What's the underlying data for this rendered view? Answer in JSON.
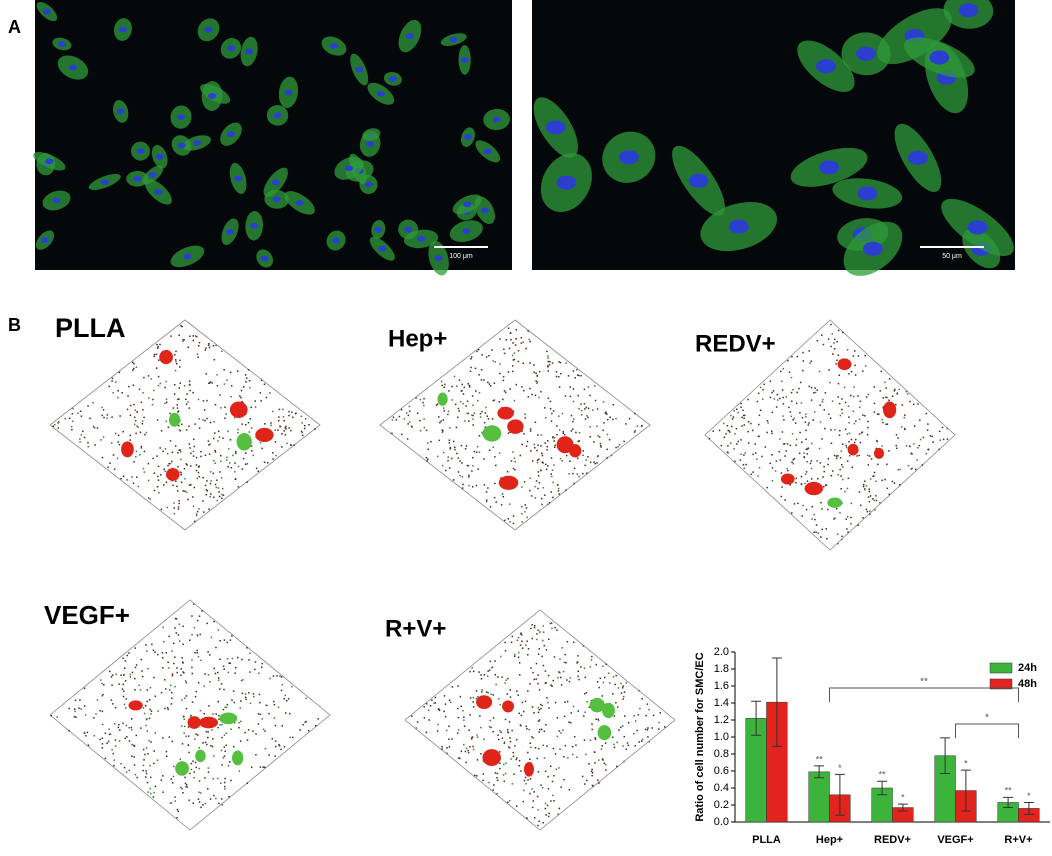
{
  "panel_a": {
    "label": "A",
    "scale_bars": [
      "100 μm",
      "50 μm"
    ]
  },
  "panel_b": {
    "label": "B",
    "images": [
      "PLLA",
      "Hep+",
      "REDV+",
      "VEGF+",
      "R+V+"
    ]
  },
  "chart_data": {
    "type": "bar",
    "y_label": "Ratio of cell number for SMC/EC",
    "categories": [
      "PLLA",
      "Hep+",
      "REDV+",
      "VEGF+",
      "R+V+"
    ],
    "series": [
      {
        "name": "24h",
        "color": "#3cb43c",
        "values": [
          1.22,
          0.59,
          0.4,
          0.78,
          0.23
        ],
        "errors": [
          0.2,
          0.07,
          0.08,
          0.21,
          0.06
        ],
        "significance": [
          null,
          "**",
          "**",
          null,
          "**"
        ]
      },
      {
        "name": "48h",
        "color": "#e3231d",
        "values": [
          1.41,
          0.32,
          0.17,
          0.37,
          0.16
        ],
        "errors": [
          0.52,
          0.24,
          0.04,
          0.24,
          0.07
        ],
        "significance": [
          null,
          "*",
          "*",
          "*",
          "*"
        ]
      }
    ],
    "comparisons": [
      {
        "between": [
          "Hep+",
          "R+V+"
        ],
        "label": "**"
      },
      {
        "between": [
          "VEGF+",
          "R+V+"
        ],
        "label": "*"
      }
    ],
    "ylim": [
      0,
      2.0
    ],
    "yticks": [
      {
        "value": 0,
        "label": "0.0"
      },
      0.2,
      0.4,
      0.6,
      0.8,
      {
        "value": 1,
        "label": "1.0"
      },
      1.2,
      1.4,
      1.6,
      1.8,
      {
        "value": 2,
        "label": "2.0"
      }
    ],
    "legend": "upper right"
  }
}
